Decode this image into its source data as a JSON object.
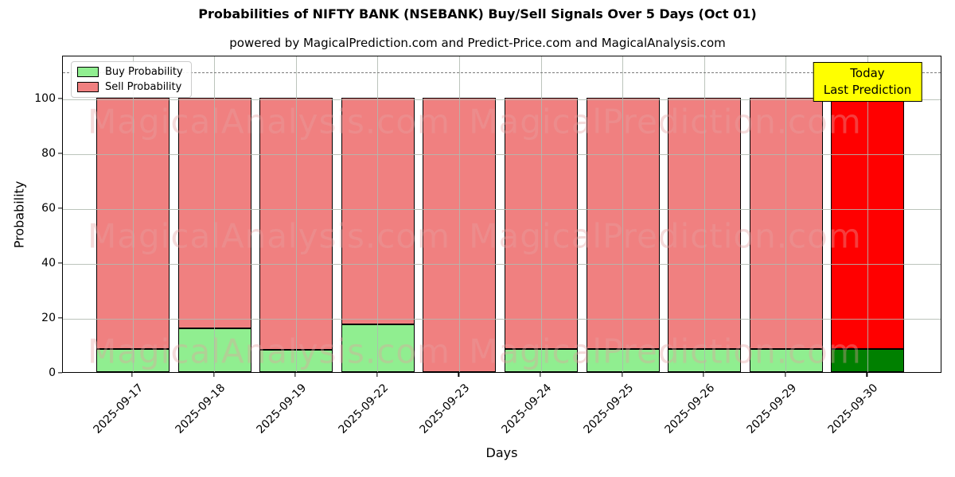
{
  "title": "Probabilities of NIFTY BANK (NSEBANK) Buy/Sell Signals Over 5 Days (Oct 01)",
  "subtitle": "powered by MagicalPrediction.com and Predict-Price.com and MagicalAnalysis.com",
  "annotation": {
    "line1": "Today",
    "line2": "Last Prediction"
  },
  "watermarks": {
    "left": "MagicalAnalysis.com",
    "right": "MagicalPrediction.com"
  },
  "legend": {
    "buy_label": "Buy Probability",
    "sell_label": "Sell Probability"
  },
  "colors": {
    "buy": "#90ee90",
    "sell": "#f08080",
    "today_buy": "#008000",
    "today_sell": "#ff0000",
    "annotation_bg": "#ffff00",
    "grid": "#b0b0b0",
    "dashed_line": "#7a7a7a"
  },
  "chart_data": {
    "type": "bar",
    "stacked": true,
    "title": "Probabilities of NIFTY BANK (NSEBANK) Buy/Sell Signals Over 5 Days (Oct 01)",
    "xlabel": "Days",
    "ylabel": "Probability",
    "categories": [
      "2025-09-17",
      "2025-09-18",
      "2025-09-19",
      "2025-09-22",
      "2025-09-23",
      "2025-09-24",
      "2025-09-25",
      "2025-09-26",
      "2025-09-29",
      "2025-09-30"
    ],
    "series": [
      {
        "name": "Buy Probability",
        "color": "#90ee90",
        "today_color": "#008000",
        "values": [
          8.5,
          16,
          8,
          17.5,
          0,
          8.5,
          8.5,
          8.5,
          8.5,
          8.5
        ]
      },
      {
        "name": "Sell Probability",
        "color": "#f08080",
        "today_color": "#ff0000",
        "values": [
          91.5,
          84,
          92,
          82.5,
          100,
          91.5,
          91.5,
          91.5,
          91.5,
          91.5
        ]
      }
    ],
    "today_index": 9,
    "yticks": [
      0,
      20,
      40,
      60,
      80,
      100
    ],
    "ylim": [
      0,
      115.7
    ],
    "dashed_line_y": 110,
    "grid": true,
    "legend_position": "upper left"
  }
}
